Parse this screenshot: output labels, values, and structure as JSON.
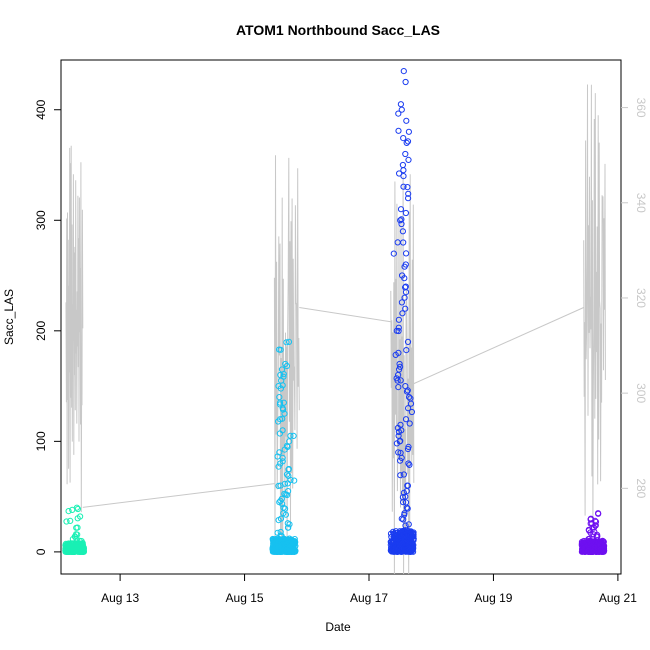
{
  "chart_data": {
    "type": "scatter",
    "title": "ATOM1 Northbound Sacc_LAS",
    "xlabel": "Date",
    "ylabel": "Sacc_LAS",
    "x_ticks": [
      "Aug 13",
      "Aug 15",
      "Aug 17",
      "Aug 19",
      "Aug 21"
    ],
    "xlim_days": [
      12.05,
      21.05
    ],
    "ylim": [
      -20,
      445
    ],
    "y_ticks": [
      0,
      100,
      200,
      300,
      400
    ],
    "y2_ticks": [
      280,
      300,
      320,
      340,
      360
    ],
    "y2lim": [
      262,
      370
    ],
    "grid": false,
    "legend": "none",
    "clusters": [
      {
        "day_start": 12.12,
        "day_end": 12.42,
        "color": "#19f0b4",
        "y_max_dense": 8,
        "outliers": [
          10,
          12,
          14,
          16,
          22,
          28,
          32,
          38,
          40
        ]
      },
      {
        "day_start": 15.45,
        "day_end": 15.82,
        "color": "#17c1f0",
        "y_max_dense": 12,
        "outliers": [
          15,
          18,
          22,
          26,
          30,
          35,
          40,
          45,
          48,
          52,
          55,
          60,
          62,
          65,
          70,
          75,
          80,
          85,
          90,
          95,
          100,
          105,
          110,
          120,
          125,
          130,
          135,
          140,
          150,
          155,
          160,
          165,
          170,
          183,
          190
        ]
      },
      {
        "day_start": 17.35,
        "day_end": 17.72,
        "color": "#1a3cf0",
        "y_max_dense": 20,
        "outliers": [
          25,
          30,
          35,
          40,
          45,
          50,
          55,
          60,
          70,
          80,
          85,
          90,
          95,
          100,
          105,
          110,
          115,
          120,
          130,
          140,
          145,
          150,
          155,
          160,
          165,
          170,
          180,
          190,
          200,
          210,
          220,
          230,
          240,
          250,
          260,
          270,
          280,
          290,
          300,
          310,
          320,
          330,
          340,
          350,
          360,
          370,
          380,
          390,
          400,
          405,
          435
        ]
      },
      {
        "day_start": 20.42,
        "day_end": 20.78,
        "color": "#6e10f0",
        "y_max_dense": 10,
        "outliers": [
          12,
          14,
          16,
          18,
          20,
          22,
          24,
          26,
          28,
          30,
          35
        ]
      }
    ],
    "line_series": {
      "name": "",
      "color": "#c8c8c8",
      "segments": [
        {
          "day_start": 12.13,
          "day_end": 12.4,
          "y2_min": 275,
          "y2_max": 352
        },
        {
          "day_start": 15.48,
          "day_end": 15.88,
          "y2_min": 268,
          "y2_max": 350
        },
        {
          "day_start": 17.35,
          "day_end": 17.72,
          "y2_min": 262,
          "y2_max": 346
        },
        {
          "day_start": 20.45,
          "day_end": 20.8,
          "y2_min": 272,
          "y2_max": 366
        }
      ],
      "connectors": [
        [
          12.4,
          276,
          15.48,
          281
        ],
        [
          15.88,
          318,
          17.35,
          315
        ],
        [
          17.72,
          302,
          20.45,
          318
        ]
      ]
    }
  }
}
